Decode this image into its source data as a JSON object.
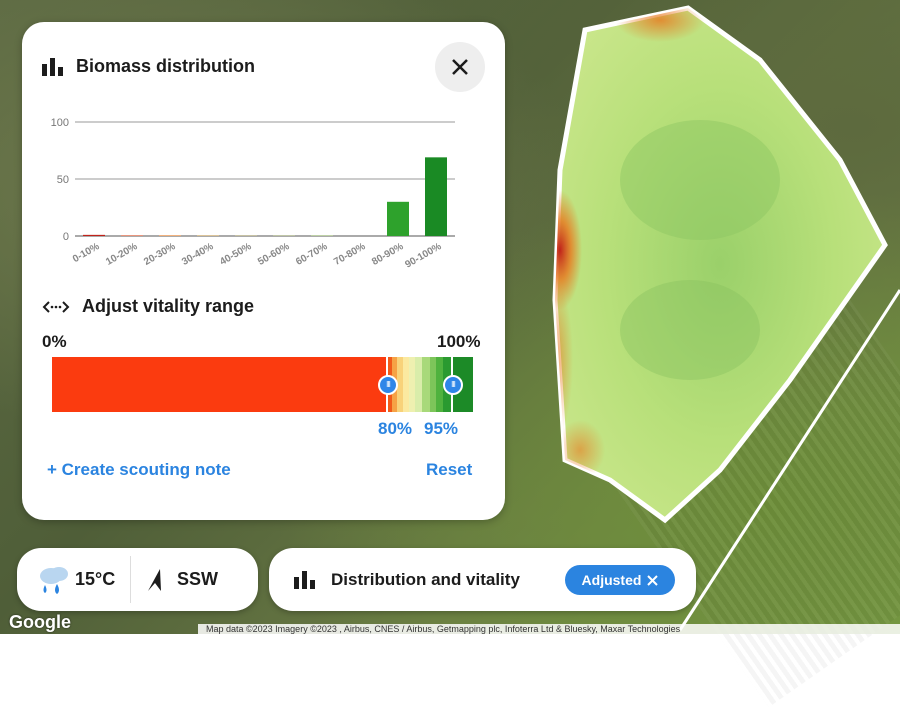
{
  "panel": {
    "title": "Biomass distribution",
    "vitality_title": "Adjust vitality range",
    "range_min_label": "0%",
    "range_max_label": "100%",
    "selected_low": "80%",
    "selected_high": "95%",
    "create_note": "+ Create scouting note",
    "reset": "Reset"
  },
  "chart_data": {
    "type": "bar",
    "categories": [
      "0-10%",
      "10-20%",
      "20-30%",
      "30-40%",
      "40-50%",
      "50-60%",
      "60-70%",
      "70-80%",
      "80-90%",
      "90-100%"
    ],
    "values": [
      1,
      0.5,
      0.5,
      0.3,
      0.2,
      0.2,
      0.3,
      0,
      30,
      69
    ],
    "colors": [
      "#c0231b",
      "#d8471c",
      "#e8781e",
      "#e6a224",
      "#d6c23a",
      "#b9d34a",
      "#91c84a",
      "#6cb63e",
      "#2ea22c",
      "#1a8a24"
    ],
    "yticks": [
      0,
      50,
      100
    ],
    "ylim": [
      0,
      100
    ]
  },
  "weather": {
    "temp": "15°C",
    "wind": "SSW"
  },
  "distribution": {
    "label": "Distribution and vitality",
    "chip": "Adjusted"
  },
  "map": {
    "logo": "Google",
    "attribution": "Map data ©2023 Imagery ©2023 , Airbus, CNES / Airbus, Getmapping plc, Infoterra Ltd & Bluesky, Maxar Technologies"
  },
  "icons": {
    "chart": "bar-chart-icon",
    "close": "close-icon",
    "range": "range-arrows-icon",
    "weather": "rain-cloud-icon",
    "wind": "wind-arrow-icon"
  },
  "colors": {
    "accent": "#2b84e0"
  }
}
